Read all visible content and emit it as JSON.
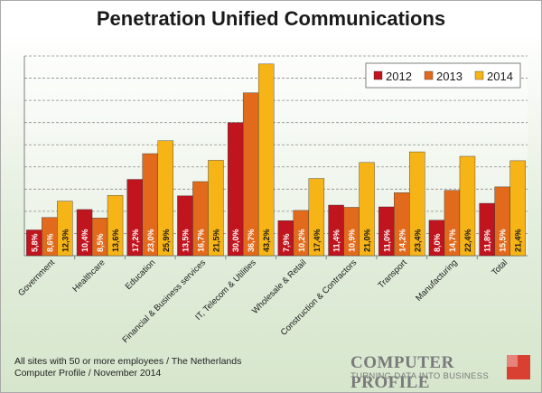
{
  "chart_data": {
    "type": "bar",
    "title": "Penetration Unified Communications",
    "categories": [
      "Government",
      "Healthcare",
      "Education",
      "Financial & Business services",
      "IT, Telecom & Utilities",
      "Wholesale & Retail",
      "Construction & Contractors",
      "Transport",
      "Manufacturing",
      "Total"
    ],
    "series": [
      {
        "name": "2012",
        "color": "#c0141e",
        "values": [
          5.8,
          10.4,
          17.2,
          13.5,
          30.0,
          7.9,
          11.4,
          11.0,
          8.0,
          11.8
        ],
        "labels": [
          "5,8%",
          "10,4%",
          "17,2%",
          "13,5%",
          "30,0%",
          "7,9%",
          "11,4%",
          "11,0%",
          "8,0%",
          "11,8%"
        ]
      },
      {
        "name": "2013",
        "color": "#e26a1c",
        "values": [
          8.6,
          8.5,
          23.0,
          16.7,
          36.7,
          10.2,
          10.9,
          14.2,
          14.7,
          15.5
        ],
        "labels": [
          "8,6%",
          "8,5%",
          "23,0%",
          "16,7%",
          "36,7%",
          "10,2%",
          "10,9%",
          "14,2%",
          "14,7%",
          "15,5%"
        ]
      },
      {
        "name": "2014",
        "color": "#f7b416",
        "values": [
          12.3,
          13.6,
          25.9,
          21.5,
          43.2,
          17.4,
          21.0,
          23.4,
          22.4,
          21.4
        ],
        "labels": [
          "12,3%",
          "13,6%",
          "25,9%",
          "21,5%",
          "43,2%",
          "17,4%",
          "21,0%",
          "23,4%",
          "22,4%",
          "21,4%"
        ]
      }
    ],
    "ylim": [
      0,
      45
    ],
    "grid": true,
    "legend": "top-right"
  },
  "footnote": {
    "line1": "All sites with 50 or more employees / The Netherlands",
    "line2": "Computer Profile / November 2014"
  },
  "logo": {
    "name": "COMPUTER PROFILE",
    "tagline": "TURNING DATA INTO BUSINESS"
  }
}
